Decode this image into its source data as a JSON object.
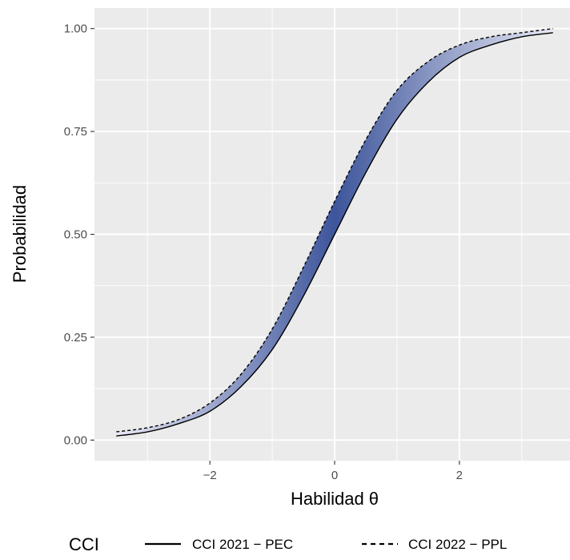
{
  "chart_data": {
    "type": "line",
    "title": "",
    "xlabel": "Habilidad θ",
    "ylabel": "Probabilidad",
    "xlim": [
      -3.85,
      3.85
    ],
    "ylim": [
      -0.05,
      1.05
    ],
    "x_ticks": [
      -2,
      0,
      2
    ],
    "x_tick_labels": [
      "−2",
      "0",
      "2"
    ],
    "y_ticks": [
      0,
      0.25,
      0.5,
      0.75,
      1
    ],
    "y_tick_labels": [
      "0.00",
      "0.25",
      "0.50",
      "0.75",
      "1.00"
    ],
    "grid": true,
    "legend_position": "bottom",
    "legend_title": "CCI",
    "area_between_series": true,
    "area_gradient_colors": [
      "#e9e9f5",
      "#3d559b"
    ],
    "series": [
      {
        "name": "CCI 2021 − PEC",
        "linetype": "solid",
        "color": "#000000",
        "x": [
          -3.5,
          -3,
          -2.5,
          -2,
          -1.5,
          -1,
          -0.5,
          0,
          0.5,
          1,
          1.5,
          2,
          2.5,
          3,
          3.5
        ],
        "y": [
          0.01,
          0.02,
          0.04,
          0.07,
          0.13,
          0.22,
          0.35,
          0.5,
          0.65,
          0.78,
          0.87,
          0.93,
          0.96,
          0.98,
          0.99
        ]
      },
      {
        "name": "CCI 2022 − PPL",
        "linetype": "dashed",
        "color": "#000000",
        "x": [
          -3.5,
          -3,
          -2.5,
          -2,
          -1.5,
          -1,
          -0.5,
          0,
          0.5,
          1,
          1.5,
          2,
          2.5,
          3,
          3.5
        ],
        "y": [
          0.02,
          0.03,
          0.05,
          0.09,
          0.16,
          0.27,
          0.42,
          0.58,
          0.73,
          0.85,
          0.92,
          0.96,
          0.98,
          0.99,
          1.0
        ]
      }
    ]
  }
}
